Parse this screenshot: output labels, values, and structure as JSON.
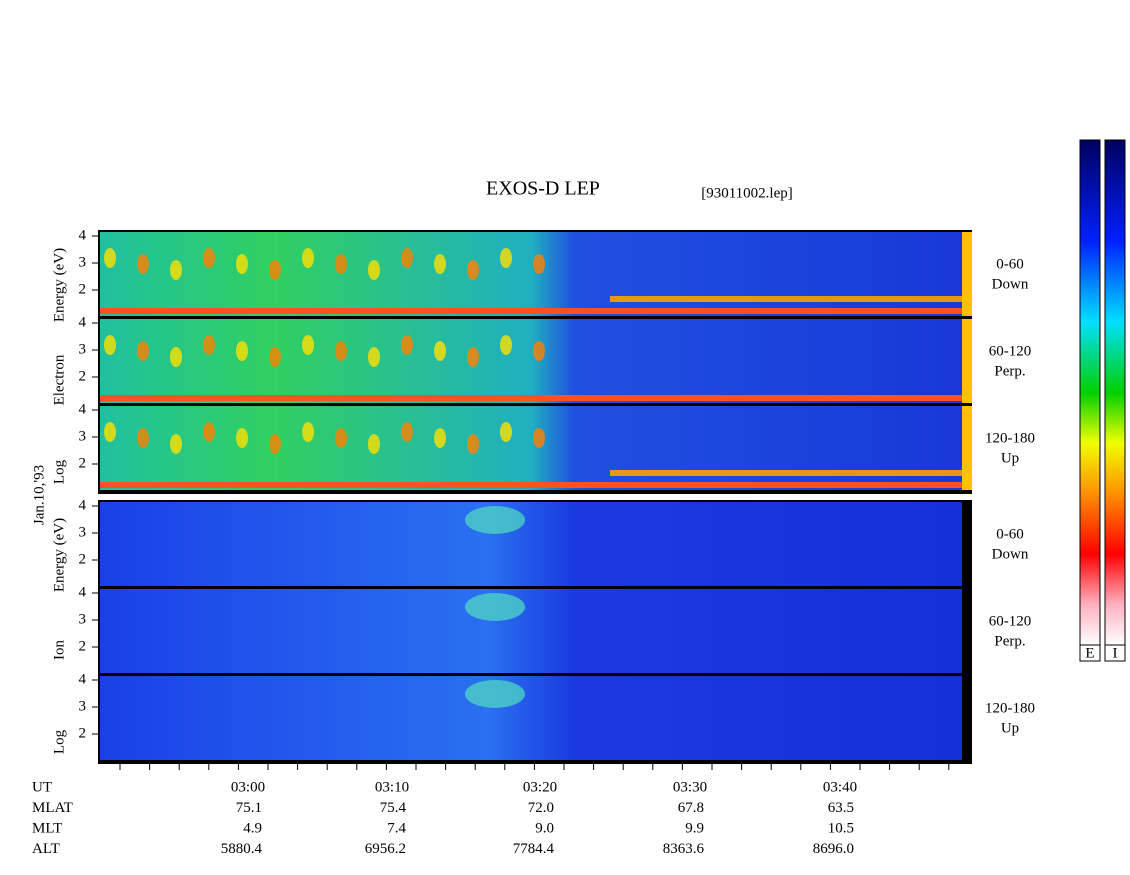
{
  "header": {
    "title": "EXOS-D LEP",
    "file": "[93011002.lep]",
    "date": "Jan.10,'93"
  },
  "groups": [
    {
      "axis_label": [
        "Log",
        "Electron",
        "Energy (eV)"
      ],
      "panels": [
        {
          "range": "0-60",
          "direction": "Down"
        },
        {
          "range": "60-120",
          "direction": "Perp."
        },
        {
          "range": "120-180",
          "direction": "Up"
        }
      ]
    },
    {
      "axis_label": [
        "Log",
        "Ion",
        "Energy (eV)"
      ],
      "panels": [
        {
          "range": "0-60",
          "direction": "Down"
        },
        {
          "range": "60-120",
          "direction": "Perp."
        },
        {
          "range": "120-180",
          "direction": "Up"
        }
      ]
    }
  ],
  "energy_ticks": [
    "4",
    "3",
    "2"
  ],
  "orbit_table": [
    {
      "label": "UT",
      "values": [
        "03:00",
        "03:10",
        "03:20",
        "03:30",
        "03:40"
      ]
    },
    {
      "label": "MLAT",
      "values": [
        "75.1",
        "75.4",
        "72.0",
        "67.8",
        "63.5"
      ]
    },
    {
      "label": "MLT",
      "values": [
        "4.9",
        "7.4",
        "9.0",
        "9.9",
        "10.5"
      ]
    },
    {
      "label": "ALT",
      "values": [
        "5880.4",
        "6956.2",
        "7784.4",
        "8363.6",
        "8696.0"
      ]
    }
  ],
  "colorbars": [
    "E",
    "I"
  ]
}
